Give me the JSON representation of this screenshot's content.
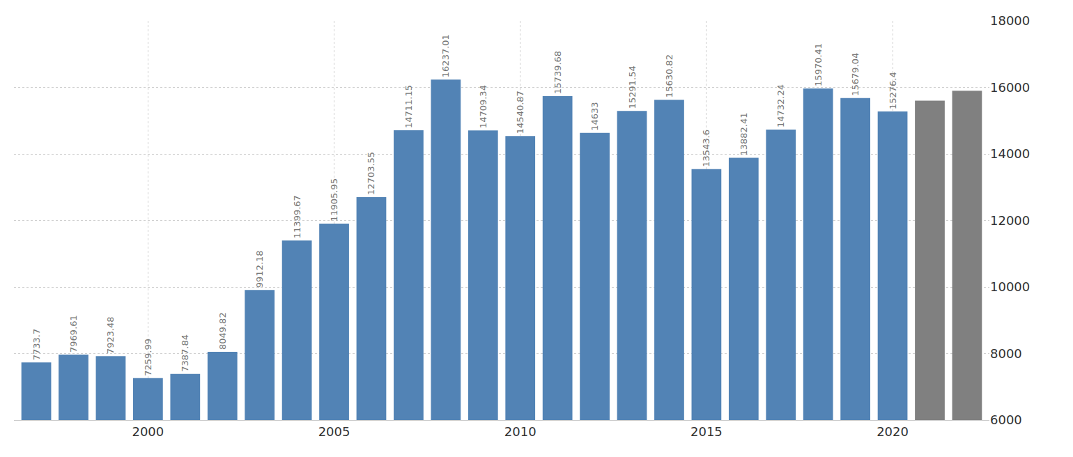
{
  "chart_data": {
    "type": "bar",
    "x": [
      1997,
      1998,
      1999,
      2000,
      2001,
      2002,
      2003,
      2004,
      2005,
      2006,
      2007,
      2008,
      2009,
      2010,
      2011,
      2012,
      2013,
      2014,
      2015,
      2016,
      2017,
      2018,
      2019,
      2020,
      2021,
      2022
    ],
    "values": [
      7733.7,
      7969.61,
      7923.48,
      7259.99,
      7387.84,
      8049.82,
      9912.18,
      11399.67,
      11905.95,
      12703.55,
      14711.15,
      16237.01,
      14709.34,
      14540.87,
      15739.68,
      14633,
      15291.54,
      15630.82,
      13543.6,
      13882.41,
      14732.24,
      15970.41,
      15679.04,
      15276.4,
      15600,
      15900
    ],
    "value_labels": [
      "7733.7",
      "7969.61",
      "7923.48",
      "7259.99",
      "7387.84",
      "8049.82",
      "9912.18",
      "11399.67",
      "11905.95",
      "12703.55",
      "14711.15",
      "16237.01",
      "14709.34",
      "14540.87",
      "15739.68",
      "14633",
      "15291.54",
      "15630.82",
      "13543.6",
      "13882.41",
      "14732.24",
      "15970.41",
      "15679.04",
      "15276.4",
      null,
      null
    ],
    "colors": [
      "#5283b5",
      "#5283b5",
      "#5283b5",
      "#5283b5",
      "#5283b5",
      "#5283b5",
      "#5283b5",
      "#5283b5",
      "#5283b5",
      "#5283b5",
      "#5283b5",
      "#5283b5",
      "#5283b5",
      "#5283b5",
      "#5283b5",
      "#5283b5",
      "#5283b5",
      "#5283b5",
      "#5283b5",
      "#5283b5",
      "#5283b5",
      "#5283b5",
      "#5283b5",
      "#5283b5",
      "#808080",
      "#808080"
    ],
    "xlim": [
      1996.4,
      2022.6
    ],
    "xticks": [
      2000,
      2005,
      2010,
      2015,
      2020
    ],
    "ylim": [
      6000,
      18000
    ],
    "yticks": [
      6000,
      8000,
      10000,
      12000,
      14000,
      16000,
      18000
    ],
    "grid": true,
    "data_labels": true
  }
}
